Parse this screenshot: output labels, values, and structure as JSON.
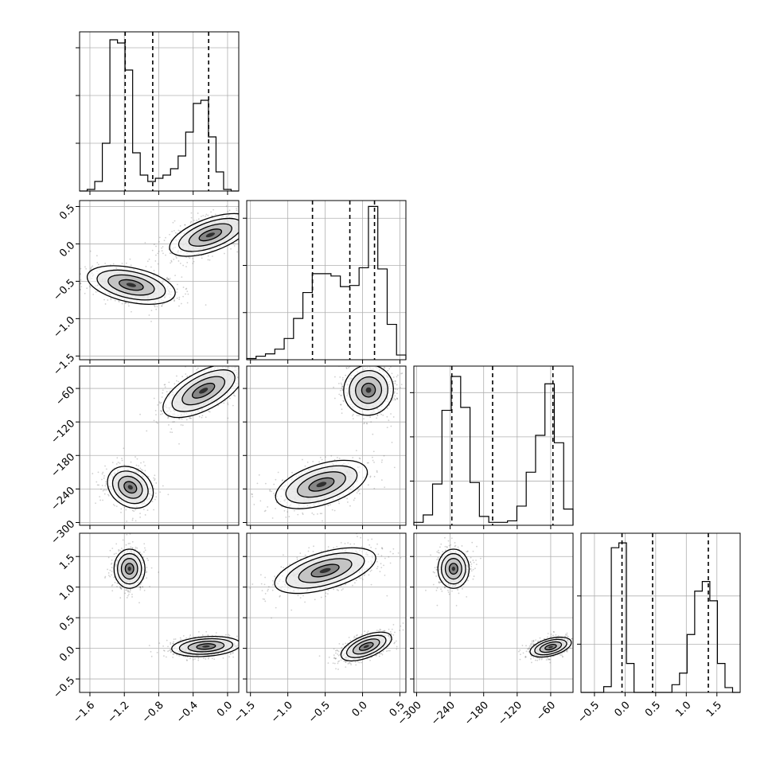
{
  "chart_data": {
    "type": "corner",
    "grid": true,
    "colors": {
      "hist": "#000000",
      "contour": "#000000",
      "grid": "#b0b0b0",
      "points": "#555555"
    },
    "params": [
      {
        "range": [
          -1.72,
          0.13
        ],
        "ticks": [
          "-1.6",
          "-1.2",
          "-0.8",
          "-0.4",
          "0.0"
        ],
        "tick_values": [
          -1.6,
          -1.2,
          -0.8,
          -0.4,
          0.0
        ]
      },
      {
        "range": [
          -1.55,
          0.58
        ],
        "ticks": [
          "-1.5",
          "-1.0",
          "-0.5",
          "0.0",
          "0.5"
        ],
        "tick_values": [
          -1.5,
          -1.0,
          -0.5,
          0.0,
          0.5
        ]
      },
      {
        "range": [
          -305,
          -20
        ],
        "ticks": [
          "-300",
          "-240",
          "-180",
          "-120",
          "-60"
        ],
        "tick_values": [
          -300,
          -240,
          -180,
          -120,
          -60
        ]
      },
      {
        "range": [
          -0.72,
          1.88
        ],
        "ticks": [
          "-0.5",
          "0.0",
          "0.5",
          "1.0",
          "1.5"
        ],
        "tick_values": [
          -0.5,
          0.0,
          0.5,
          1.0,
          1.5
        ]
      }
    ],
    "diagonals": [
      {
        "counts": [
          0,
          1,
          6,
          30,
          95,
          93,
          76,
          24,
          10,
          6,
          8,
          10,
          14,
          22,
          37,
          55,
          57,
          34,
          12,
          1,
          0
        ],
        "quantiles": [
          -1.19,
          -0.87,
          -0.22
        ],
        "ymax": 100,
        "ytick_values": [
          30,
          60,
          90
        ]
      },
      {
        "counts": [
          1,
          3,
          5,
          9,
          18,
          35,
          57,
          73,
          73,
          71,
          62,
          63,
          78,
          130,
          77,
          30,
          4
        ],
        "quantiles": [
          -0.67,
          -0.17,
          0.16
        ],
        "ymax": 135,
        "ytick_values": [
          40,
          80,
          120
        ]
      },
      {
        "counts": [
          2,
          7,
          28,
          78,
          101,
          80,
          29,
          6,
          2,
          2,
          3,
          13,
          36,
          61,
          96,
          56,
          11
        ],
        "quantiles": [
          -237,
          -164,
          -56
        ],
        "ymax": 108,
        "ytick_values": [
          30,
          60,
          90
        ]
      },
      {
        "counts": [
          0,
          0,
          0,
          6,
          150,
          155,
          30,
          0,
          0,
          0,
          0,
          0,
          8,
          20,
          60,
          105,
          115,
          95,
          30,
          5,
          0
        ],
        "quantiles": [
          -0.05,
          0.45,
          1.36
        ],
        "ymax": 165,
        "ytick_values": [
          50,
          100
        ]
      }
    ],
    "pairs": [
      {
        "x": 0,
        "y": 1,
        "blobs": [
          {
            "cx": -1.12,
            "cy": -0.55,
            "sx": 0.1,
            "sy": 0.3,
            "rot": 78,
            "w": 0.45
          },
          {
            "cx": -0.2,
            "cy": 0.12,
            "sx": 0.25,
            "sy": 0.11,
            "rot": 20,
            "w": 0.55
          }
        ]
      },
      {
        "x": 0,
        "y": 2,
        "blobs": [
          {
            "cx": -1.13,
            "cy": -237,
            "sx": 0.11,
            "sy": 22,
            "rot": 55,
            "w": 0.45
          },
          {
            "cx": -0.28,
            "cy": -64,
            "sx": 0.26,
            "sy": 17,
            "rot": 28,
            "w": 0.55
          }
        ]
      },
      {
        "x": 1,
        "y": 2,
        "blobs": [
          {
            "cx": -0.55,
            "cy": -232,
            "sx": 0.32,
            "sy": 18,
            "rot": 18,
            "w": 0.45
          },
          {
            "cx": 0.08,
            "cy": -63,
            "sx": 0.17,
            "sy": 22,
            "rot": 55,
            "w": 0.55
          }
        ]
      },
      {
        "x": 0,
        "y": 3,
        "blobs": [
          {
            "cx": -1.14,
            "cy": 1.3,
            "sx": 0.09,
            "sy": 0.16,
            "rot": 0,
            "w": 0.45
          },
          {
            "cx": -0.25,
            "cy": 0.03,
            "sx": 0.2,
            "sy": 0.08,
            "rot": 4,
            "w": 0.55
          }
        ]
      },
      {
        "x": 1,
        "y": 3,
        "blobs": [
          {
            "cx": -0.5,
            "cy": 1.27,
            "sx": 0.35,
            "sy": 0.15,
            "rot": 16,
            "w": 0.45
          },
          {
            "cx": 0.05,
            "cy": 0.03,
            "sx": 0.18,
            "sy": 0.09,
            "rot": 22,
            "w": 0.55
          }
        ]
      },
      {
        "x": 2,
        "y": 3,
        "blobs": [
          {
            "cx": -234,
            "cy": 1.3,
            "sx": 14,
            "sy": 0.16,
            "rot": 0,
            "w": 0.45
          },
          {
            "cx": -60,
            "cy": 0.02,
            "sx": 19,
            "sy": 0.07,
            "rot": 15,
            "w": 0.55
          }
        ]
      }
    ]
  }
}
